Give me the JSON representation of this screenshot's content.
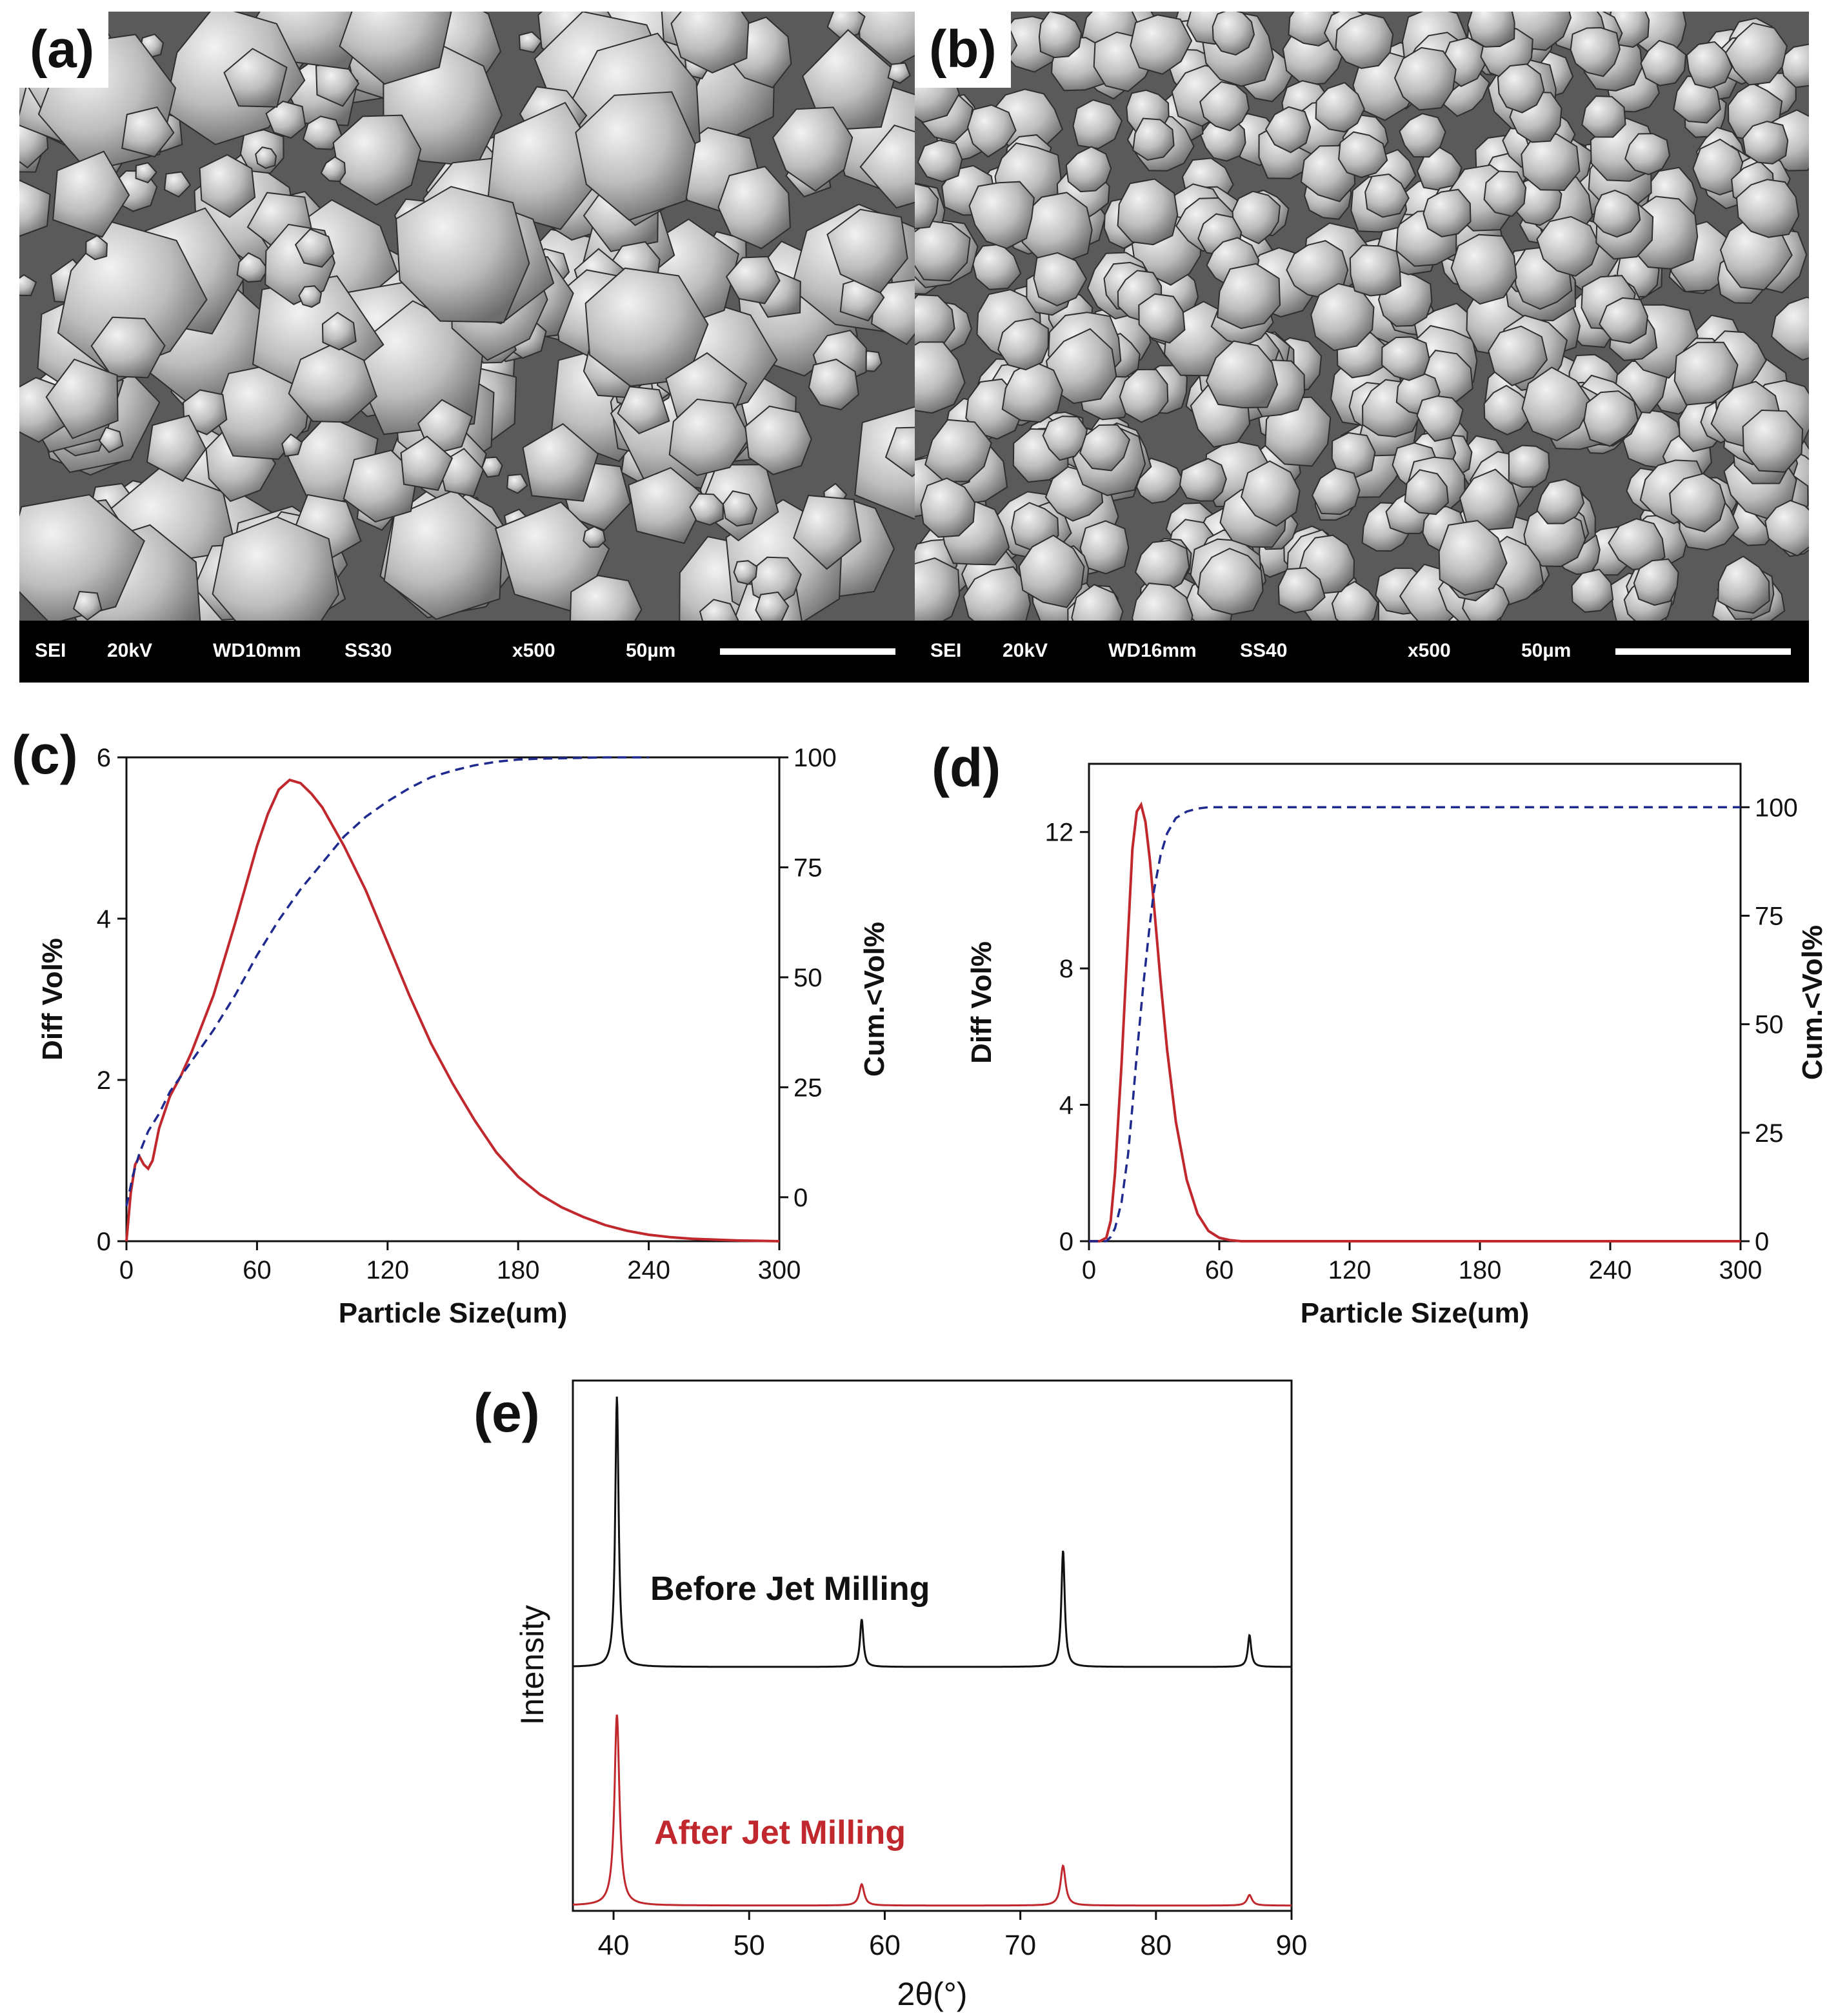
{
  "panels": {
    "a": {
      "label": "(a)",
      "info": {
        "detector": "SEI",
        "voltage": "20kV",
        "wd": "WD10mm",
        "ss": "SS30",
        "mag": "x500",
        "scale": "50µm"
      }
    },
    "b": {
      "label": "(b)",
      "info": {
        "detector": "SEI",
        "voltage": "20kV",
        "wd": "WD16mm",
        "ss": "SS40",
        "mag": "x500",
        "scale": "50µm"
      }
    },
    "c": {
      "label": "(c)"
    },
    "d": {
      "label": "(d)"
    },
    "e": {
      "label": "(e)"
    }
  },
  "colors": {
    "diff": "#c0282d",
    "cum": "#1f2a8f",
    "before": "#111111",
    "after": "#c0282d"
  },
  "chart_data": [
    {
      "id": "c",
      "type": "line",
      "xlabel": "Particle Size(um)",
      "ylabel": "Diff Vol%",
      "y2label": "Cum.<Vol%",
      "xlim": [
        0,
        300
      ],
      "ylim": [
        0,
        6
      ],
      "y2lim": [
        -10,
        100
      ],
      "xticks": [
        0,
        60,
        120,
        180,
        240,
        300
      ],
      "yticks": [
        0,
        2,
        4,
        6
      ],
      "y2ticks": [
        0,
        25,
        50,
        75,
        100
      ],
      "series": [
        {
          "axis": "left",
          "style": "solid",
          "x": [
            0,
            2,
            4,
            6,
            8,
            10,
            12,
            15,
            20,
            25,
            30,
            40,
            50,
            60,
            65,
            70,
            75,
            80,
            85,
            90,
            100,
            110,
            120,
            130,
            140,
            150,
            160,
            170,
            180,
            190,
            200,
            210,
            220,
            230,
            240,
            250,
            260,
            270,
            280,
            290,
            300
          ],
          "y": [
            0,
            0.6,
            0.95,
            1.05,
            0.95,
            0.9,
            1.0,
            1.4,
            1.8,
            2.05,
            2.35,
            3.05,
            3.95,
            4.9,
            5.3,
            5.6,
            5.72,
            5.68,
            5.55,
            5.38,
            4.9,
            4.35,
            3.7,
            3.05,
            2.45,
            1.95,
            1.5,
            1.1,
            0.8,
            0.58,
            0.42,
            0.3,
            0.2,
            0.13,
            0.08,
            0.05,
            0.03,
            0.02,
            0.01,
            0.005,
            0
          ]
        },
        {
          "axis": "right",
          "style": "dashed",
          "x": [
            0,
            3,
            6,
            10,
            15,
            20,
            30,
            40,
            50,
            60,
            70,
            80,
            90,
            100,
            110,
            120,
            130,
            140,
            150,
            160,
            170,
            180,
            190,
            200,
            210,
            220,
            230,
            240
          ],
          "y": [
            -2,
            5,
            10,
            15,
            19,
            24,
            31,
            38,
            46,
            55,
            63,
            70,
            76,
            82,
            86.5,
            90,
            93,
            95.5,
            97,
            98.2,
            99,
            99.5,
            99.7,
            99.8,
            99.9,
            100,
            100,
            100
          ]
        }
      ]
    },
    {
      "id": "d",
      "type": "line",
      "xlabel": "Particle Size(um)",
      "ylabel": "Diff Vol%",
      "y2label": "Cum.<Vol%",
      "xlim": [
        0,
        300
      ],
      "ylim": [
        0,
        14
      ],
      "y2lim": [
        0,
        110
      ],
      "xticks": [
        0,
        60,
        120,
        180,
        240,
        300
      ],
      "yticks": [
        0,
        4,
        8,
        12
      ],
      "y2ticks": [
        0,
        25,
        50,
        75,
        100
      ],
      "series": [
        {
          "axis": "left",
          "style": "solid",
          "x": [
            0,
            5,
            8,
            10,
            12,
            15,
            18,
            20,
            22,
            24,
            26,
            28,
            30,
            33,
            36,
            40,
            45,
            50,
            55,
            60,
            65,
            70,
            80,
            300
          ],
          "y": [
            0,
            0,
            0.1,
            0.6,
            2.0,
            5.2,
            9.0,
            11.5,
            12.6,
            12.8,
            12.3,
            11.2,
            9.8,
            7.6,
            5.6,
            3.5,
            1.8,
            0.8,
            0.3,
            0.1,
            0.03,
            0,
            0,
            0
          ]
        },
        {
          "axis": "right",
          "style": "dashed",
          "x": [
            0,
            8,
            10,
            12,
            15,
            18,
            20,
            22,
            25,
            28,
            30,
            33,
            36,
            40,
            45,
            50,
            55,
            60,
            300
          ],
          "y": [
            0,
            0,
            1,
            3,
            9,
            20,
            31,
            43,
            59,
            73,
            81,
            89,
            94,
            97.5,
            99,
            99.7,
            100,
            100,
            100
          ]
        }
      ]
    },
    {
      "id": "e",
      "type": "line",
      "xlabel": "2θ(°)",
      "ylabel": "Intensity",
      "xlim": [
        37,
        90
      ],
      "xticks": [
        40,
        50,
        60,
        70,
        80,
        90
      ],
      "series": [
        {
          "name": "Before Jet Milling",
          "baseline": 0.46,
          "peaks": [
            [
              40.25,
              0.51
            ],
            [
              58.3,
              0.09
            ],
            [
              73.15,
              0.22
            ],
            [
              86.9,
              0.06
            ]
          ],
          "width": 0.15
        },
        {
          "name": "After Jet Milling",
          "baseline": 0.01,
          "peaks": [
            [
              40.25,
              0.36
            ],
            [
              58.3,
              0.04
            ],
            [
              73.15,
              0.075
            ],
            [
              86.9,
              0.02
            ]
          ],
          "width": 0.22
        }
      ]
    }
  ]
}
